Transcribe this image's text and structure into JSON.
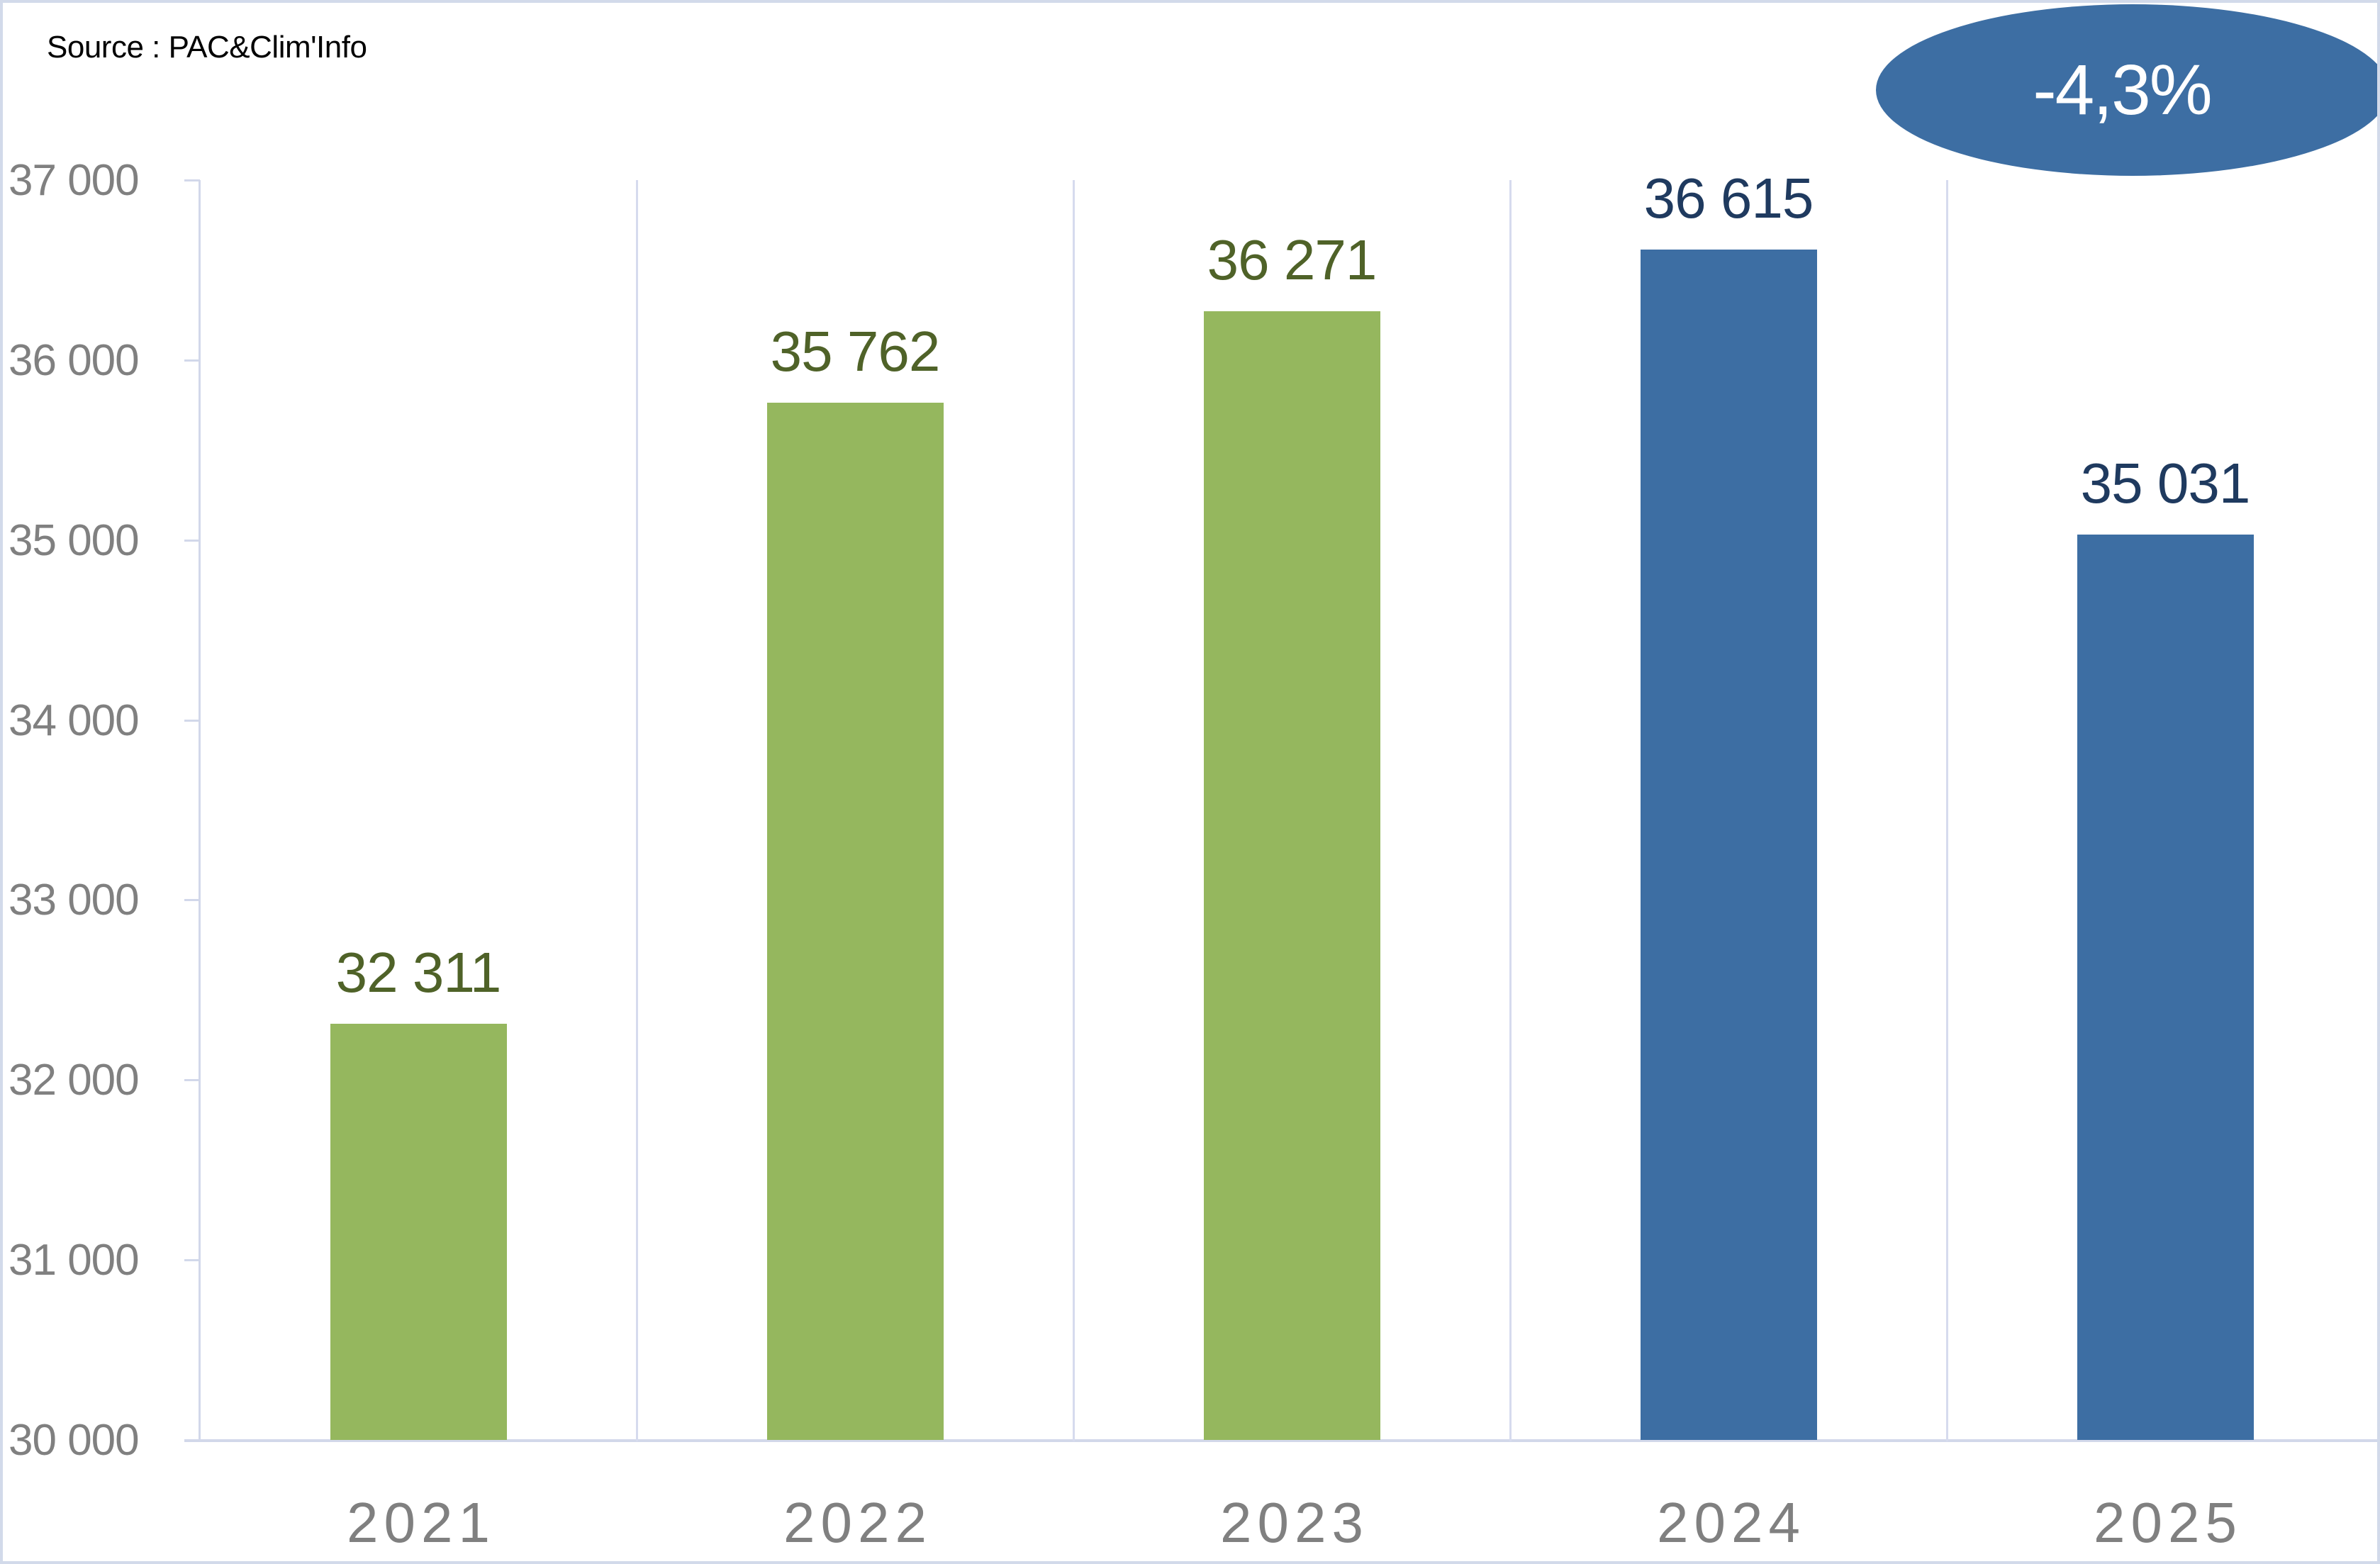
{
  "source_note": "Source : PAC&Clim'Info",
  "badge": {
    "text": "-4,3%",
    "color": "#3d6ea3"
  },
  "colors": {
    "green_bar": "#95b75e",
    "green_label": "#4f6228",
    "blue_bar": "#3d6ea3",
    "blue_label": "#1f3a5f",
    "axis_text": "#808080",
    "grid": "#d6dbee"
  },
  "chart_data": {
    "type": "bar",
    "title": "",
    "source": "Source : PAC&Clim'Info",
    "xlabel": "",
    "ylabel": "",
    "categories": [
      "2021",
      "2022",
      "2023",
      "2024",
      "2025"
    ],
    "values": [
      32311,
      35762,
      36271,
      36615,
      35031
    ],
    "value_labels": [
      "32 311",
      "35 762",
      "36 271",
      "36 615",
      "35 031"
    ],
    "bar_colors": [
      "#95b75e",
      "#95b75e",
      "#95b75e",
      "#3d6ea3",
      "#3d6ea3"
    ],
    "label_colors": [
      "#4f6228",
      "#4f6228",
      "#4f6228",
      "#1f3a5f",
      "#1f3a5f"
    ],
    "ylim": [
      30000,
      37000
    ],
    "yticks": [
      30000,
      31000,
      32000,
      33000,
      34000,
      35000,
      36000,
      37000
    ],
    "ytick_labels": [
      "30 000",
      "31 000",
      "32 000",
      "33 000",
      "34 000",
      "35 000",
      "36 000",
      "37 000"
    ],
    "grid": "vertical category separators",
    "legend": null,
    "annotations": [
      {
        "text": "-4,3%",
        "shape": "ellipse",
        "position": "top-right",
        "meaning": "change 2024 to 2025"
      }
    ]
  }
}
